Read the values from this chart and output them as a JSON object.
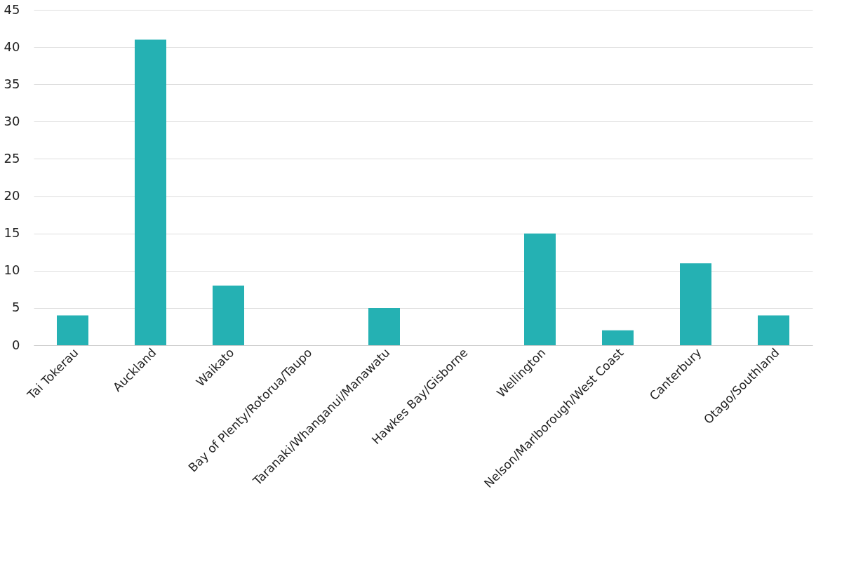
{
  "chart_data": {
    "type": "bar",
    "categories": [
      "Tai Tokerau",
      "Auckland",
      "Waikato",
      "Bay of Plenty/Rotorua/Taupo",
      "Taranaki/Whanganui/Manawatu",
      "Hawkes Bay/Gisborne",
      "Wellington",
      "Nelson/Marlborough/West Coast",
      "Canterbury",
      "Otago/Southland"
    ],
    "values": [
      4,
      41,
      8,
      0,
      5,
      0,
      15,
      2,
      11,
      4
    ],
    "color": "#25b1b3",
    "ylim": [
      0,
      45
    ],
    "yticks": [
      0,
      5,
      10,
      15,
      20,
      25,
      30,
      35,
      40,
      45
    ],
    "grid": "y"
  }
}
